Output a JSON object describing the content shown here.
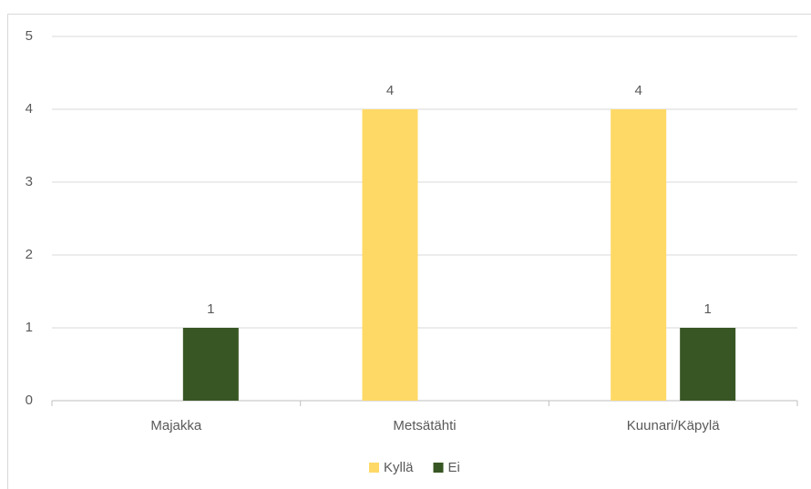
{
  "chart_data": {
    "type": "bar",
    "categories": [
      "Majakka",
      "Metsätähti",
      "Kuunari/Käpylä"
    ],
    "series": [
      {
        "name": "Kyllä",
        "color": "#ffd966",
        "values": [
          null,
          4,
          4
        ]
      },
      {
        "name": "Ei",
        "color": "#375623",
        "values": [
          1,
          null,
          1
        ]
      }
    ],
    "ylim": [
      0,
      5
    ],
    "yticks": [
      0,
      1,
      2,
      3,
      4,
      5
    ],
    "grid": true,
    "legend": "bottom"
  }
}
